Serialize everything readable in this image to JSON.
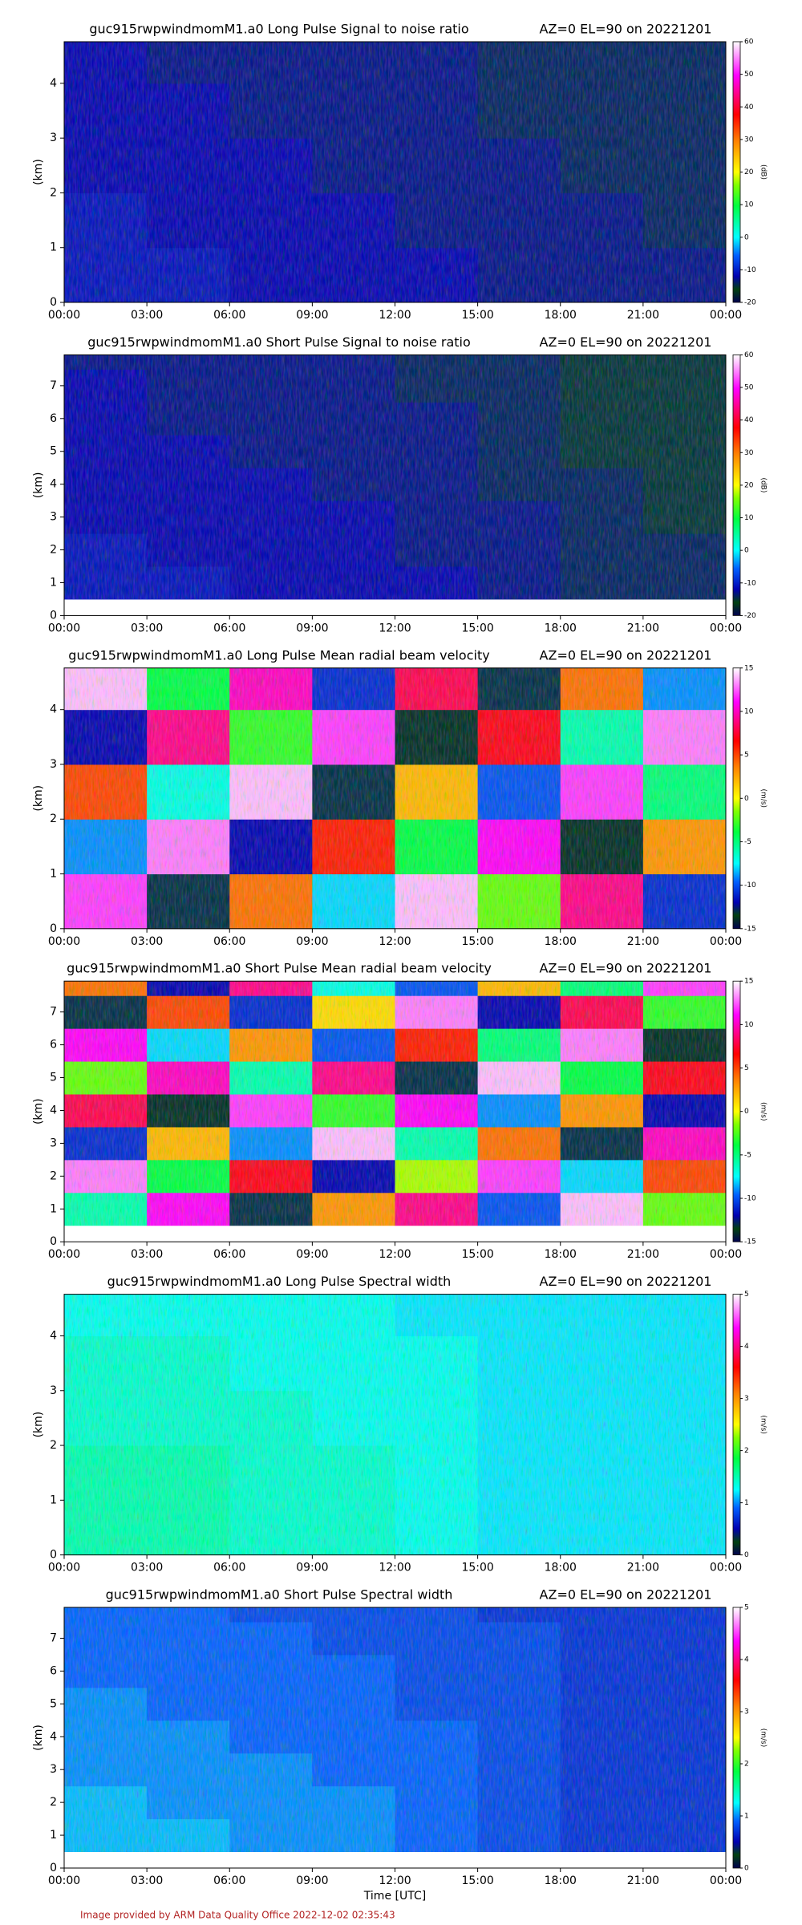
{
  "colormap": [
    [
      0,
      "#000050"
    ],
    [
      0.05,
      "#004010"
    ],
    [
      0.1,
      "#0000b0"
    ],
    [
      0.18,
      "#0060ff"
    ],
    [
      0.25,
      "#00ffff"
    ],
    [
      0.37,
      "#00ff40"
    ],
    [
      0.45,
      "#80ff00"
    ],
    [
      0.5,
      "#ffff00"
    ],
    [
      0.62,
      "#ff8000"
    ],
    [
      0.72,
      "#ff0000"
    ],
    [
      0.87,
      "#ff00ff"
    ],
    [
      1,
      "#ffffff"
    ]
  ],
  "footer": "Image provided by ARM Data Quality Office 2022-12-02 02:35:43",
  "chart_data": [
    {
      "type": "heatmap",
      "title": "guc915rwpwindmomM1.a0 Long Pulse Signal to noise ratio",
      "title_right": "AZ=0 EL=90 on 20221201",
      "ylabel": "(km)",
      "zlabel": "(dB)",
      "xlim": [
        0,
        24
      ],
      "xticks": [
        {
          "value": 0,
          "label": "00:00"
        },
        {
          "value": 3,
          "label": "03:00"
        },
        {
          "value": 6,
          "label": "06:00"
        },
        {
          "value": 9,
          "label": "09:00"
        },
        {
          "value": 12,
          "label": "12:00"
        },
        {
          "value": 15,
          "label": "15:00"
        },
        {
          "value": 18,
          "label": "18:00"
        },
        {
          "value": 21,
          "label": "21:00"
        },
        {
          "value": 24,
          "label": "00:00"
        }
      ],
      "ylim": [
        0,
        4.76
      ],
      "yticks": [
        0,
        1,
        2,
        3,
        4
      ],
      "zlim": [
        -20,
        60
      ],
      "zticks": [
        -20,
        -10,
        0,
        10,
        20,
        30,
        40,
        50,
        60
      ],
      "x_edges": [
        0,
        3,
        6,
        9,
        12,
        15,
        18,
        21,
        24
      ],
      "y_edges": [
        0,
        1,
        2,
        3,
        4,
        4.76
      ],
      "z": [
        [
          -11,
          -11,
          -12,
          -12,
          -12,
          -13,
          -13,
          -13
        ],
        [
          -11,
          -12,
          -12,
          -12,
          -13,
          -13,
          -13,
          -14
        ],
        [
          -12,
          -12,
          -12,
          -13,
          -13,
          -13,
          -14,
          -14
        ],
        [
          -12,
          -12,
          -13,
          -13,
          -13,
          -14,
          -14,
          -14
        ],
        [
          -12,
          -13,
          -13,
          -13,
          -13,
          -14,
          -14,
          -14
        ]
      ]
    },
    {
      "type": "heatmap",
      "title": "guc915rwpwindmomM1.a0 Short Pulse Signal to noise ratio",
      "title_right": "AZ=0 EL=90 on 20221201",
      "ylabel": "(km)",
      "zlabel": "(dB)",
      "xlim": [
        0,
        24
      ],
      "xticks": [
        {
          "value": 0,
          "label": "00:00"
        },
        {
          "value": 3,
          "label": "03:00"
        },
        {
          "value": 6,
          "label": "06:00"
        },
        {
          "value": 9,
          "label": "09:00"
        },
        {
          "value": 12,
          "label": "12:00"
        },
        {
          "value": 15,
          "label": "15:00"
        },
        {
          "value": 18,
          "label": "18:00"
        },
        {
          "value": 21,
          "label": "21:00"
        },
        {
          "value": 24,
          "label": "00:00"
        }
      ],
      "ylim": [
        0,
        7.94
      ],
      "yticks": [
        0,
        1,
        2,
        3,
        4,
        5,
        6,
        7
      ],
      "zlim": [
        -20,
        60
      ],
      "zticks": [
        -20,
        -10,
        0,
        10,
        20,
        30,
        40,
        50,
        60
      ],
      "x_edges": [
        0,
        3,
        6,
        9,
        12,
        15,
        18,
        21,
        24
      ],
      "y_edges": [
        0.5,
        1.5,
        2.5,
        3.5,
        4.5,
        5.5,
        6.5,
        7.5,
        7.94
      ],
      "z": [
        [
          -11,
          -11,
          -12,
          -12,
          -12,
          -13,
          -14,
          -14
        ],
        [
          -11,
          -12,
          -12,
          -12,
          -13,
          -13,
          -14,
          -14
        ],
        [
          -12,
          -12,
          -12,
          -12,
          -13,
          -13,
          -14,
          -15
        ],
        [
          -12,
          -12,
          -12,
          -13,
          -13,
          -14,
          -14,
          -15
        ],
        [
          -12,
          -12,
          -13,
          -13,
          -13,
          -14,
          -15,
          -15
        ],
        [
          -12,
          -13,
          -13,
          -13,
          -13,
          -14,
          -15,
          -15
        ],
        [
          -12,
          -13,
          -13,
          -13,
          -14,
          -14,
          -15,
          -15
        ],
        [
          -13,
          -13,
          -13,
          -13,
          -14,
          -14,
          -15,
          -15
        ]
      ]
    },
    {
      "type": "heatmap",
      "title": "guc915rwpwindmomM1.a0 Long Pulse Mean radial beam velocity",
      "title_right": "AZ=0 EL=90 on 20221201",
      "ylabel": "(km)",
      "zlabel": "(m/s)",
      "xlim": [
        0,
        24
      ],
      "xticks": [
        {
          "value": 0,
          "label": "00:00"
        },
        {
          "value": 3,
          "label": "03:00"
        },
        {
          "value": 6,
          "label": "06:00"
        },
        {
          "value": 9,
          "label": "09:00"
        },
        {
          "value": 12,
          "label": "12:00"
        },
        {
          "value": 15,
          "label": "15:00"
        },
        {
          "value": 18,
          "label": "18:00"
        },
        {
          "value": 21,
          "label": "21:00"
        },
        {
          "value": 24,
          "label": "00:00"
        }
      ],
      "ylim": [
        0,
        4.76
      ],
      "yticks": [
        0,
        1,
        2,
        3,
        4
      ],
      "zlim": [
        -15,
        15
      ],
      "zticks": [
        -15,
        -10,
        -5,
        0,
        5,
        10,
        15
      ],
      "x_edges": [
        0,
        3,
        6,
        9,
        12,
        15,
        18,
        21,
        24
      ],
      "y_edges": [
        0,
        1,
        2,
        3,
        4,
        4.76
      ],
      "z": [
        [
          12,
          -13,
          4,
          -8,
          14,
          -2,
          9,
          -11
        ],
        [
          -9,
          13,
          -12,
          6,
          -4,
          11,
          -14,
          3
        ],
        [
          5,
          -7,
          14,
          -13,
          2,
          -10,
          12,
          -5
        ],
        [
          -12,
          9,
          -3,
          12,
          -14,
          7,
          -6,
          13
        ],
        [
          14,
          -4,
          10,
          -11,
          8,
          -13,
          4,
          -9
        ]
      ]
    },
    {
      "type": "heatmap",
      "title": "guc915rwpwindmomM1.a0 Short Pulse Mean radial beam velocity",
      "title_right": "AZ=0 EL=90 on 20221201",
      "ylabel": "(km)",
      "zlabel": "(m/s)",
      "xlim": [
        0,
        24
      ],
      "xticks": [
        {
          "value": 0,
          "label": "00:00"
        },
        {
          "value": 3,
          "label": "03:00"
        },
        {
          "value": 6,
          "label": "06:00"
        },
        {
          "value": 9,
          "label": "09:00"
        },
        {
          "value": 12,
          "label": "12:00"
        },
        {
          "value": 15,
          "label": "15:00"
        },
        {
          "value": 18,
          "label": "18:00"
        },
        {
          "value": 21,
          "label": "21:00"
        },
        {
          "value": 24,
          "label": "00:00"
        }
      ],
      "ylim": [
        0,
        7.94
      ],
      "yticks": [
        0,
        1,
        2,
        3,
        4,
        5,
        6,
        7
      ],
      "zlim": [
        -15,
        15
      ],
      "zticks": [
        -15,
        -10,
        -5,
        0,
        5,
        10,
        15
      ],
      "x_edges": [
        0,
        3,
        6,
        9,
        12,
        15,
        18,
        21,
        24
      ],
      "y_edges": [
        0.5,
        1.5,
        2.5,
        3.5,
        4.5,
        5.5,
        6.5,
        7.5,
        7.94
      ],
      "z": [
        [
          -6,
          11,
          -13,
          3,
          9,
          -10,
          14,
          -2
        ],
        [
          13,
          -4,
          7,
          -12,
          -1,
          12,
          -8,
          5
        ],
        [
          -11,
          2,
          -9,
          14,
          -6,
          4,
          -13,
          10
        ],
        [
          8,
          -14,
          12,
          -3,
          11,
          -9,
          3,
          -12
        ],
        [
          -2,
          10,
          -6,
          9,
          -13,
          14,
          -4,
          7
        ],
        [
          11,
          -8,
          3,
          -10,
          6,
          -5,
          13,
          -14
        ],
        [
          -13,
          5,
          -11,
          1,
          13,
          -12,
          8,
          -3
        ],
        [
          4,
          -12,
          9,
          -7,
          -10,
          2,
          -5,
          12
        ]
      ]
    },
    {
      "type": "heatmap",
      "title": "guc915rwpwindmomM1.a0 Long Pulse Spectral width",
      "title_right": "AZ=0 EL=90 on 20221201",
      "ylabel": "(km)",
      "zlabel": "(m/s)",
      "xlim": [
        0,
        24
      ],
      "xticks": [
        {
          "value": 0,
          "label": "00:00"
        },
        {
          "value": 3,
          "label": "03:00"
        },
        {
          "value": 6,
          "label": "06:00"
        },
        {
          "value": 9,
          "label": "09:00"
        },
        {
          "value": 12,
          "label": "12:00"
        },
        {
          "value": 15,
          "label": "15:00"
        },
        {
          "value": 18,
          "label": "18:00"
        },
        {
          "value": 21,
          "label": "21:00"
        },
        {
          "value": 24,
          "label": "00:00"
        }
      ],
      "ylim": [
        0,
        4.76
      ],
      "yticks": [
        0,
        1,
        2,
        3,
        4
      ],
      "zlim": [
        0,
        5
      ],
      "zticks": [
        0,
        1,
        2,
        3,
        4,
        5
      ],
      "x_edges": [
        0,
        3,
        6,
        9,
        12,
        15,
        18,
        21,
        24
      ],
      "y_edges": [
        0,
        1,
        2,
        3,
        4,
        4.76
      ],
      "z": [
        [
          1.5,
          1.5,
          1.4,
          1.4,
          1.3,
          1.2,
          1.2,
          1.2
        ],
        [
          1.5,
          1.5,
          1.4,
          1.4,
          1.3,
          1.2,
          1.2,
          1.2
        ],
        [
          1.4,
          1.4,
          1.4,
          1.3,
          1.3,
          1.2,
          1.2,
          1.2
        ],
        [
          1.4,
          1.4,
          1.3,
          1.3,
          1.3,
          1.2,
          1.2,
          1.2
        ],
        [
          1.3,
          1.3,
          1.3,
          1.3,
          1.2,
          1.2,
          1.2,
          1.2
        ]
      ]
    },
    {
      "type": "heatmap",
      "title": "guc915rwpwindmomM1.a0 Short Pulse Spectral width",
      "title_right": "AZ=0 EL=90 on 20221201",
      "ylabel": "(km)",
      "zlabel": "(m/s)",
      "xlabel": "Time [UTC]",
      "xlim": [
        0,
        24
      ],
      "xticks": [
        {
          "value": 0,
          "label": "00:00"
        },
        {
          "value": 3,
          "label": "03:00"
        },
        {
          "value": 6,
          "label": "06:00"
        },
        {
          "value": 9,
          "label": "09:00"
        },
        {
          "value": 12,
          "label": "12:00"
        },
        {
          "value": 15,
          "label": "15:00"
        },
        {
          "value": 18,
          "label": "18:00"
        },
        {
          "value": 21,
          "label": "21:00"
        },
        {
          "value": 24,
          "label": "00:00"
        }
      ],
      "ylim": [
        0,
        7.94
      ],
      "yticks": [
        0,
        1,
        2,
        3,
        4,
        5,
        6,
        7
      ],
      "zlim": [
        0,
        5
      ],
      "zticks": [
        0,
        1,
        2,
        3,
        4,
        5
      ],
      "x_edges": [
        0,
        3,
        6,
        9,
        12,
        15,
        18,
        21,
        24
      ],
      "y_edges": [
        0.5,
        1.5,
        2.5,
        3.5,
        4.5,
        5.5,
        6.5,
        7.5,
        7.94
      ],
      "z": [
        [
          1.1,
          1.1,
          1.0,
          1.0,
          0.9,
          0.8,
          0.7,
          0.7
        ],
        [
          1.1,
          1.0,
          1.0,
          1.0,
          0.9,
          0.8,
          0.7,
          0.7
        ],
        [
          1.0,
          1.0,
          1.0,
          0.9,
          0.9,
          0.8,
          0.7,
          0.7
        ],
        [
          1.0,
          1.0,
          0.9,
          0.9,
          0.9,
          0.8,
          0.7,
          0.7
        ],
        [
          1.0,
          0.9,
          0.9,
          0.9,
          0.8,
          0.8,
          0.7,
          0.7
        ],
        [
          0.9,
          0.9,
          0.9,
          0.9,
          0.8,
          0.8,
          0.7,
          0.7
        ],
        [
          0.9,
          0.9,
          0.9,
          0.8,
          0.8,
          0.8,
          0.7,
          0.7
        ],
        [
          0.9,
          0.9,
          0.8,
          0.8,
          0.8,
          0.7,
          0.7,
          0.7
        ]
      ]
    }
  ]
}
